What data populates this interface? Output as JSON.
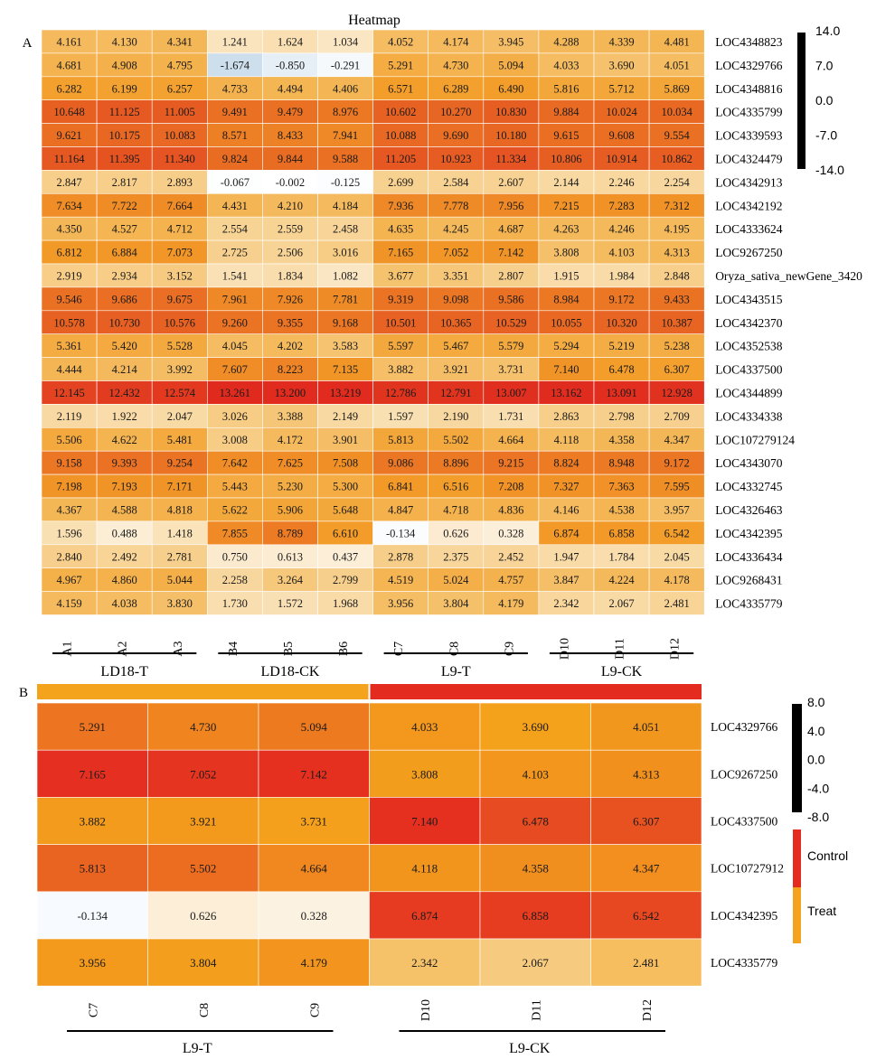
{
  "chart_data": [
    {
      "type": "heatmap",
      "panel_label": "A",
      "title": "Heatmap",
      "columns": [
        "A1",
        "A2",
        "A3",
        "B4",
        "B5",
        "B6",
        "C7",
        "C8",
        "C9",
        "D10",
        "D11",
        "D12"
      ],
      "groups": [
        {
          "label": "LD18-T",
          "columns": [
            "A1",
            "A2",
            "A3"
          ]
        },
        {
          "label": "LD18-CK",
          "columns": [
            "B4",
            "B5",
            "B6"
          ]
        },
        {
          "label": "L9-T",
          "columns": [
            "C7",
            "C8",
            "C9"
          ]
        },
        {
          "label": "L9-CK",
          "columns": [
            "D10",
            "D11",
            "D12"
          ]
        }
      ],
      "rows": [
        "LOC4348823",
        "LOC4329766",
        "LOC4348816",
        "LOC4335799",
        "LOC4339593",
        "LOC4324479",
        "LOC4342913",
        "LOC4342192",
        "LOC4333624",
        "LOC9267250",
        "Oryza_sativa_newGene_3420",
        "LOC4343515",
        "LOC4342370",
        "LOC4352538",
        "LOC4337500",
        "LOC4344899",
        "LOC4334338",
        "LOC107279124",
        "LOC4343070",
        "LOC4332745",
        "LOC4326463",
        "LOC4342395",
        "LOC4336434",
        "LOC9268431",
        "LOC4335779"
      ],
      "values": [
        [
          "4.161",
          "4.130",
          "4.341",
          "1.241",
          "1.624",
          "1.034",
          "4.052",
          "4.174",
          "3.945",
          "4.288",
          "4.339",
          "4.481"
        ],
        [
          "4.681",
          "4.908",
          "4.795",
          "-1.674",
          "-0.850",
          "-0.291",
          "5.291",
          "4.730",
          "5.094",
          "4.033",
          "3.690",
          "4.051"
        ],
        [
          "6.282",
          "6.199",
          "6.257",
          "4.733",
          "4.494",
          "4.406",
          "6.571",
          "6.289",
          "6.490",
          "5.816",
          "5.712",
          "5.869"
        ],
        [
          "10.648",
          "11.125",
          "11.005",
          "9.491",
          "9.479",
          "8.976",
          "10.602",
          "10.270",
          "10.830",
          "9.884",
          "10.024",
          "10.034"
        ],
        [
          "9.621",
          "10.175",
          "10.083",
          "8.571",
          "8.433",
          "7.941",
          "10.088",
          "9.690",
          "10.180",
          "9.615",
          "9.608",
          "9.554"
        ],
        [
          "11.164",
          "11.395",
          "11.340",
          "9.824",
          "9.844",
          "9.588",
          "11.205",
          "10.923",
          "11.334",
          "10.806",
          "10.914",
          "10.862"
        ],
        [
          "2.847",
          "2.817",
          "2.893",
          "-0.067",
          "-0.002",
          "-0.125",
          "2.699",
          "2.584",
          "2.607",
          "2.144",
          "2.246",
          "2.254"
        ],
        [
          "7.634",
          "7.722",
          "7.664",
          "4.431",
          "4.210",
          "4.184",
          "7.936",
          "7.778",
          "7.956",
          "7.215",
          "7.283",
          "7.312"
        ],
        [
          "4.350",
          "4.527",
          "4.712",
          "2.554",
          "2.559",
          "2.458",
          "4.635",
          "4.245",
          "4.687",
          "4.263",
          "4.246",
          "4.195"
        ],
        [
          "6.812",
          "6.884",
          "7.073",
          "2.725",
          "2.506",
          "3.016",
          "7.165",
          "7.052",
          "7.142",
          "3.808",
          "4.103",
          "4.313"
        ],
        [
          "2.919",
          "2.934",
          "3.152",
          "1.541",
          "1.834",
          "1.082",
          "3.677",
          "3.351",
          "2.807",
          "1.915",
          "1.984",
          "2.848"
        ],
        [
          "9.546",
          "9.686",
          "9.675",
          "7.961",
          "7.926",
          "7.781",
          "9.319",
          "9.098",
          "9.586",
          "8.984",
          "9.172",
          "9.433"
        ],
        [
          "10.578",
          "10.730",
          "10.576",
          "9.260",
          "9.355",
          "9.168",
          "10.501",
          "10.365",
          "10.529",
          "10.055",
          "10.320",
          "10.387"
        ],
        [
          "5.361",
          "5.420",
          "5.528",
          "4.045",
          "4.202",
          "3.583",
          "5.597",
          "5.467",
          "5.579",
          "5.294",
          "5.219",
          "5.238"
        ],
        [
          "4.444",
          "4.214",
          "3.992",
          "7.607",
          "8.223",
          "7.135",
          "3.882",
          "3.921",
          "3.731",
          "7.140",
          "6.478",
          "6.307"
        ],
        [
          "12.145",
          "12.432",
          "12.574",
          "13.261",
          "13.200",
          "13.219",
          "12.786",
          "12.791",
          "13.007",
          "13.162",
          "13.091",
          "12.928"
        ],
        [
          "2.119",
          "1.922",
          "2.047",
          "3.026",
          "3.388",
          "2.149",
          "1.597",
          "2.190",
          "1.731",
          "2.863",
          "2.798",
          "2.709"
        ],
        [
          "5.506",
          "4.622",
          "5.481",
          "3.008",
          "4.172",
          "3.901",
          "5.813",
          "5.502",
          "4.664",
          "4.118",
          "4.358",
          "4.347"
        ],
        [
          "9.158",
          "9.393",
          "9.254",
          "7.642",
          "7.625",
          "7.508",
          "9.086",
          "8.896",
          "9.215",
          "8.824",
          "8.948",
          "9.172"
        ],
        [
          "7.198",
          "7.193",
          "7.171",
          "5.443",
          "5.230",
          "5.300",
          "6.841",
          "6.516",
          "7.208",
          "7.327",
          "7.363",
          "7.595"
        ],
        [
          "4.367",
          "4.588",
          "4.818",
          "5.622",
          "5.906",
          "5.648",
          "4.847",
          "4.718",
          "4.836",
          "4.146",
          "4.538",
          "3.957"
        ],
        [
          "1.596",
          "0.488",
          "1.418",
          "7.855",
          "8.789",
          "6.610",
          "-0.134",
          "0.626",
          "0.328",
          "6.874",
          "6.858",
          "6.542"
        ],
        [
          "2.840",
          "2.492",
          "2.781",
          "0.750",
          "0.613",
          "0.437",
          "2.878",
          "2.375",
          "2.452",
          "1.947",
          "1.784",
          "2.045"
        ],
        [
          "4.967",
          "4.860",
          "5.044",
          "2.258",
          "3.264",
          "2.799",
          "4.519",
          "5.024",
          "4.757",
          "3.847",
          "4.224",
          "4.178"
        ],
        [
          "4.159",
          "4.038",
          "3.830",
          "1.730",
          "1.572",
          "1.968",
          "3.956",
          "3.804",
          "4.179",
          "2.342",
          "2.067",
          "2.481"
        ]
      ],
      "color_scale": {
        "ticks": [
          "14.0",
          "7.0",
          "0.0",
          "-7.0",
          "-14.0"
        ],
        "range": [
          -14,
          14
        ],
        "stops": [
          "#c3d7ea",
          "#ffffff",
          "#f5c37a",
          "#f3a023",
          "#e43c22"
        ]
      }
    },
    {
      "type": "heatmap",
      "panel_label": "B",
      "columns": [
        "C7",
        "C8",
        "C9",
        "D10",
        "D11",
        "D12"
      ],
      "groups": [
        {
          "label": "L9-T",
          "columns": [
            "C7",
            "C8",
            "C9"
          ]
        },
        {
          "label": "L9-CK",
          "columns": [
            "D10",
            "D11",
            "D12"
          ]
        }
      ],
      "column_annotation": [
        "Treat",
        "Treat",
        "Treat",
        "Control",
        "Control",
        "Control"
      ],
      "rows": [
        "LOC4329766",
        "LOC9267250",
        "LOC4337500",
        "LOC10727912",
        "LOC4342395",
        "LOC4335779"
      ],
      "values": [
        [
          "5.291",
          "4.730",
          "5.094",
          "4.033",
          "3.690",
          "4.051"
        ],
        [
          "7.165",
          "7.052",
          "7.142",
          "3.808",
          "4.103",
          "4.313"
        ],
        [
          "3.882",
          "3.921",
          "3.731",
          "7.140",
          "6.478",
          "6.307"
        ],
        [
          "5.813",
          "5.502",
          "4.664",
          "4.118",
          "4.358",
          "4.347"
        ],
        [
          "-0.134",
          "0.626",
          "0.328",
          "6.874",
          "6.858",
          "6.542"
        ],
        [
          "3.956",
          "3.804",
          "4.179",
          "2.342",
          "2.067",
          "2.481"
        ]
      ],
      "color_scale": {
        "ticks": [
          "8.0",
          "4.0",
          "0.0",
          "-4.0",
          "-8.0"
        ],
        "range": [
          -8,
          8
        ],
        "stops": [
          "#f7fafe",
          "#fdf3e4",
          "#f4a725",
          "#e42b20"
        ]
      },
      "annotation_legend": [
        {
          "label": "Control",
          "color": "#e42b20"
        },
        {
          "label": "Treat",
          "color": "#f4a31c"
        }
      ]
    }
  ]
}
